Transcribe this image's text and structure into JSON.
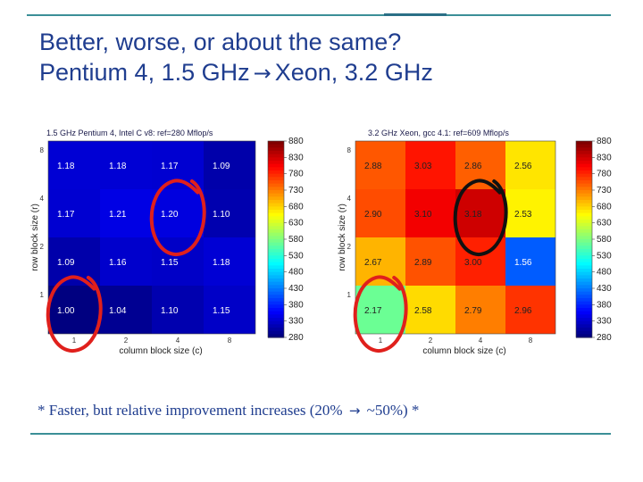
{
  "slide": {
    "title_line1": "Better, worse, or about the same?",
    "title_line2_left": "Pentium 4, 1.5 GHz",
    "title_line2_right": "Xeon, 3.2 GHz",
    "footnote_prefix": "* Faster, but relative improvement increases (20%",
    "footnote_suffix": "~50%) *",
    "arrow_glyph": "→"
  },
  "chart_data": [
    {
      "type": "heatmap",
      "title": "1.5 GHz Pentium 4, Intel C v8: ref=280 Mflop/s",
      "xlabel": "column block size (c)",
      "ylabel": "row block size (r)",
      "x_ticks": [
        "1",
        "2",
        "4",
        "8"
      ],
      "y_ticks": [
        "8",
        "4",
        "2",
        "1"
      ],
      "grid_values": [
        [
          "1.18",
          "1.18",
          "1.17",
          "1.09"
        ],
        [
          "1.17",
          "1.21",
          "1.20",
          "1.10"
        ],
        [
          "1.09",
          "1.16",
          "1.15",
          "1.18"
        ],
        [
          "1.00",
          "1.04",
          "1.10",
          "1.15"
        ]
      ],
      "mflops": [
        [
          330,
          330,
          328,
          305
        ],
        [
          328,
          339,
          336,
          308
        ],
        [
          305,
          325,
          322,
          330
        ],
        [
          280,
          291,
          308,
          322
        ]
      ],
      "colorbar_ticks": [
        "880",
        "830",
        "780",
        "730",
        "680",
        "630",
        "580",
        "530",
        "480",
        "430",
        "380",
        "330",
        "280"
      ],
      "colorbar_range": [
        280,
        880
      ],
      "colormap": "jet",
      "circled_cells": [
        [
          1,
          2
        ],
        [
          3,
          0
        ]
      ],
      "circle_color": "#e0201c"
    },
    {
      "type": "heatmap",
      "title": "3.2 GHz Xeon, gcc 4.1: ref=609 Mflop/s",
      "xlabel": "column block size (c)",
      "ylabel": "row block size (r)",
      "x_ticks": [
        "1",
        "2",
        "4",
        "8"
      ],
      "y_ticks": [
        "8",
        "4",
        "2",
        "1"
      ],
      "grid_values": [
        [
          "2.88",
          "3.03",
          "2.86",
          "2.56"
        ],
        [
          "2.90",
          "3.10",
          "3.18",
          "2.53"
        ],
        [
          "2.67",
          "2.89",
          "3.00",
          "1.56"
        ],
        [
          "2.17",
          "2.58",
          "2.79",
          "2.96"
        ]
      ],
      "mflops": [
        [
          754,
          793,
          749,
          670
        ],
        [
          760,
          812,
          834,
          662
        ],
        [
          699,
          757,
          786,
          409
        ],
        [
          568,
          676,
          731,
          775
        ]
      ],
      "colorbar_ticks": [
        "880",
        "830",
        "780",
        "730",
        "680",
        "630",
        "580",
        "530",
        "480",
        "430",
        "380",
        "330",
        "280"
      ],
      "colorbar_range": [
        280,
        880
      ],
      "colormap": "jet",
      "circled_cells": [
        [
          1,
          2
        ],
        [
          3,
          0
        ]
      ],
      "circle_colors": [
        "#111111",
        "#e0201c"
      ]
    }
  ]
}
